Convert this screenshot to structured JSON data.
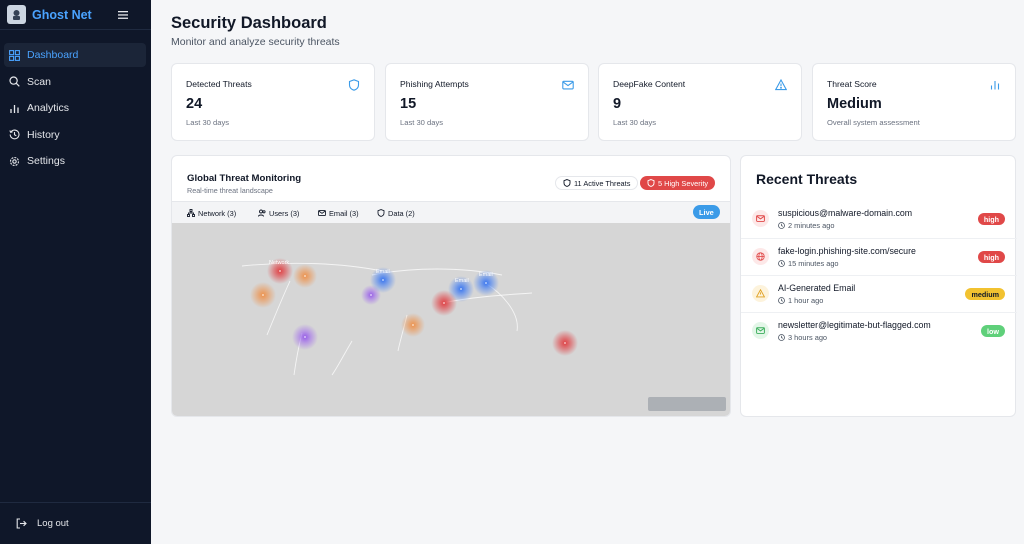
{
  "app": {
    "name": "Ghost Net"
  },
  "sidebar": {
    "items": [
      {
        "label": "Dashboard",
        "icon": "dashboard-icon",
        "active": true
      },
      {
        "label": "Scan",
        "icon": "search-icon",
        "active": false
      },
      {
        "label": "Analytics",
        "icon": "bar-chart-icon",
        "active": false
      },
      {
        "label": "History",
        "icon": "history-icon",
        "active": false
      },
      {
        "label": "Settings",
        "icon": "gear-icon",
        "active": false
      }
    ],
    "logout_label": "Log out"
  },
  "header": {
    "title": "Security Dashboard",
    "subtitle": "Monitor and analyze security threats"
  },
  "stats": [
    {
      "label": "Detected Threats",
      "value": "24",
      "note": "Last 30 days",
      "icon": "shield-icon"
    },
    {
      "label": "Phishing Attempts",
      "value": "15",
      "note": "Last 30 days",
      "icon": "mail-icon"
    },
    {
      "label": "DeepFake Content",
      "value": "9",
      "note": "Last 30 days",
      "icon": "warning-icon"
    },
    {
      "label": "Threat Score",
      "value": "Medium",
      "note": "Overall system assessment",
      "icon": "bar-chart-icon"
    }
  ],
  "map": {
    "title": "Global Threat Monitoring",
    "subtitle": "Real-time threat landscape",
    "active_badge": "11 Active Threats",
    "high_badge": "5 High Severity",
    "filters": [
      {
        "label": "Network (3)",
        "icon": "network-icon"
      },
      {
        "label": "Users (3)",
        "icon": "users-icon"
      },
      {
        "label": "Email (3)",
        "icon": "mail-icon"
      },
      {
        "label": "Data (2)",
        "icon": "shield-icon"
      }
    ],
    "live_label": "Live",
    "marker_labels": {
      "network": "Network",
      "email": "Email"
    }
  },
  "recent": {
    "title": "Recent Threats",
    "items": [
      {
        "name": "suspicious@malware-domain.com",
        "time": "2 minutes ago",
        "severity": "high",
        "icon": "mail-icon"
      },
      {
        "name": "fake-login.phishing-site.com/secure",
        "time": "15 minutes ago",
        "severity": "high",
        "icon": "globe-icon"
      },
      {
        "name": "AI-Generated Email",
        "time": "1 hour ago",
        "severity": "medium",
        "icon": "warning-icon"
      },
      {
        "name": "newsletter@legitimate-but-flagged.com",
        "time": "3 hours ago",
        "severity": "low",
        "icon": "mail-icon"
      }
    ]
  },
  "colors": {
    "accent": "#4aa3ff",
    "sidebar_bg": "#0f1729",
    "high": "#e04848",
    "medium": "#f2c230",
    "low": "#5fd07a",
    "live": "#3b9be8"
  }
}
